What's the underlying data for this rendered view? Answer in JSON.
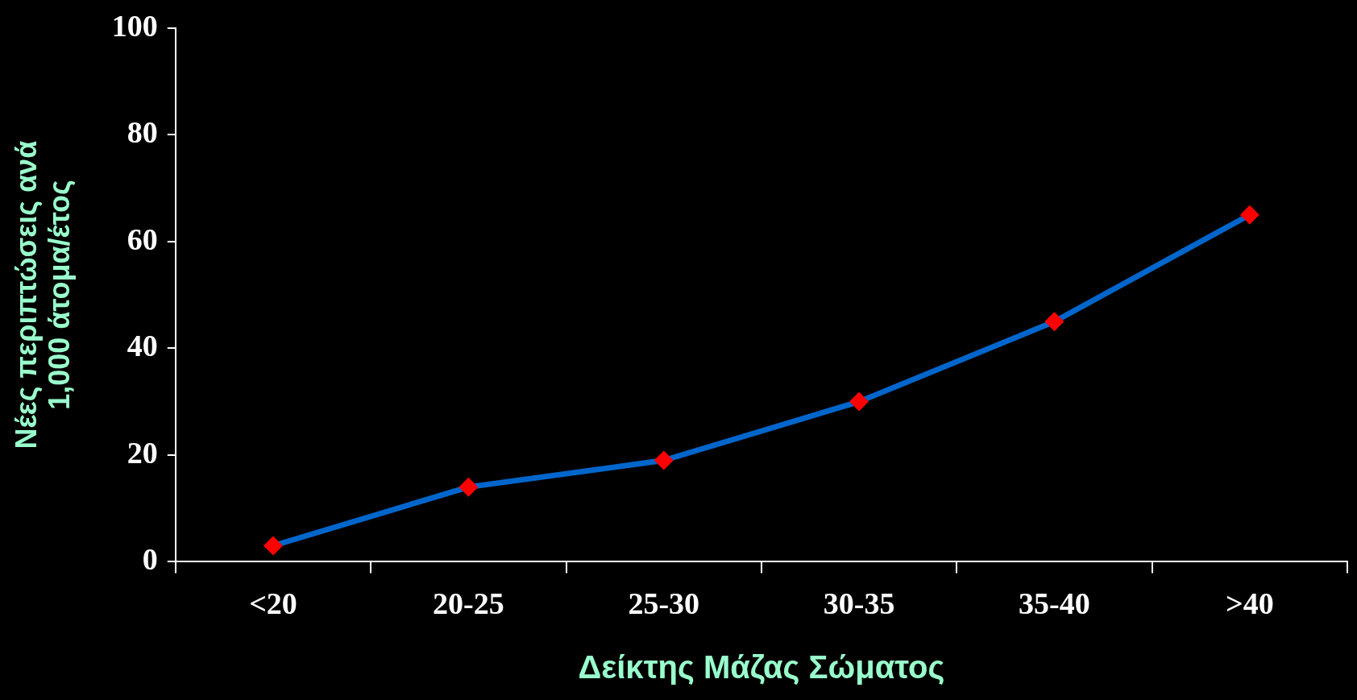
{
  "chart_data": {
    "type": "line",
    "xlabel": "Δείκτης Μάζας Σώματος",
    "ylabel": "Νέες περιπτώσεις ανά 1,000 άτομα/έτος",
    "categories": [
      "<20",
      "20-25",
      "25-30",
      "30-35",
      "35-40",
      ">40"
    ],
    "series": [
      {
        "color": "#0066cc",
        "colors": [
          "#ff0000",
          "#ff0000",
          "#ff0000",
          "#ff0000",
          "#ff0000",
          "#ff0000"
        ],
        "values": [
          3,
          14,
          19,
          30,
          45,
          65
        ]
      }
    ],
    "marker": "diamond",
    "line_style": "solid",
    "ylim": [
      0,
      100
    ],
    "yticks": [
      0,
      20,
      40,
      60,
      80,
      100
    ],
    "grid": false,
    "legend": false
  }
}
